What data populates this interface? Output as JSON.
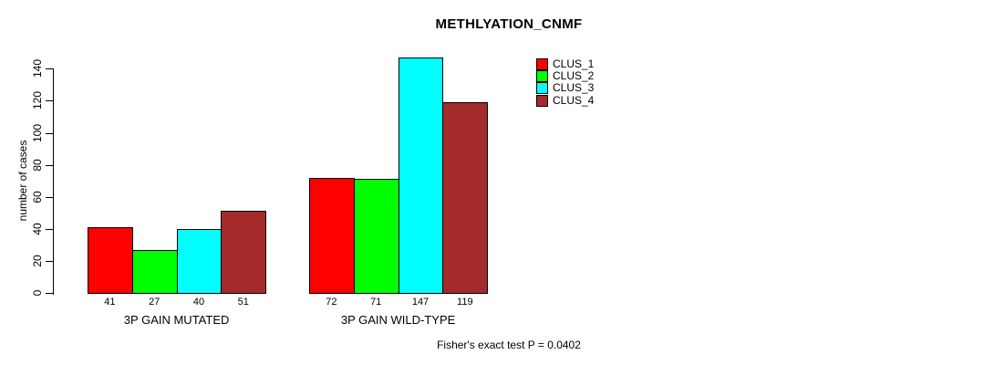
{
  "chart_data": {
    "type": "bar",
    "title": "METHLYATION_CNMF",
    "ylabel": "number of cases",
    "footnote": "Fisher's exact test P = 0.0402",
    "categories": [
      "3P GAIN MUTATED",
      "3P GAIN WILD-TYPE"
    ],
    "series": [
      {
        "name": "CLUS_1",
        "color": "#FF0000",
        "values": [
          41,
          72
        ]
      },
      {
        "name": "CLUS_2",
        "color": "#00FF00",
        "values": [
          27,
          71
        ]
      },
      {
        "name": "CLUS_3",
        "color": "#00FFFF",
        "values": [
          40,
          147
        ]
      },
      {
        "name": "CLUS_4",
        "color": "#A52A2A",
        "values": [
          51,
          119
        ]
      }
    ],
    "yticks": [
      0,
      20,
      40,
      60,
      80,
      100,
      120,
      140
    ],
    "ylim": [
      0,
      140
    ],
    "bar_value_labels_shown": true,
    "legend_position": "top-right",
    "grid": false,
    "background": "#ffffff",
    "axis_color": "#000000"
  }
}
